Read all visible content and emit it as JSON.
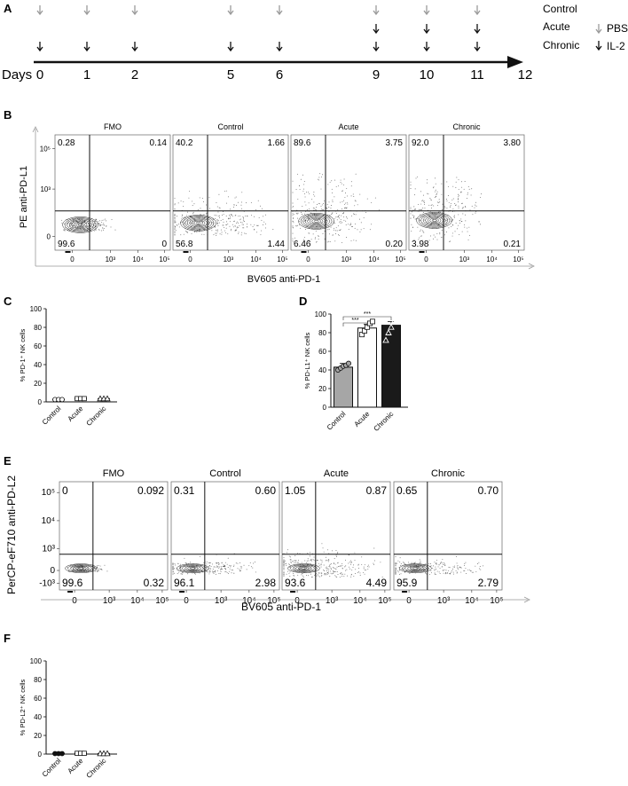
{
  "panel_letters": {
    "A": "A",
    "B": "B",
    "C": "C",
    "D": "D",
    "E": "E",
    "F": "F"
  },
  "timeline": {
    "axis_label": "Days",
    "days": [
      "0",
      "1",
      "2",
      "5",
      "6",
      "9",
      "10",
      "11",
      "12"
    ],
    "rows": [
      "Control",
      "Acute",
      "Chronic"
    ],
    "legend": [
      {
        "label": "PBS",
        "color": "#9a9a9a"
      },
      {
        "label": "IL-2",
        "color": "#111111"
      }
    ],
    "pbs_days": [
      0,
      1,
      2,
      5,
      6,
      9,
      10,
      11
    ],
    "il2_acute_days": [
      9,
      10,
      11
    ],
    "il2_chronic_days": [
      0,
      1,
      2,
      5,
      6,
      9,
      10,
      11
    ]
  },
  "flow_b": {
    "x_label": "BV605 anti-PD-1",
    "y_label": "PE anti-PD-L1",
    "y_ticks": [
      "10⁵",
      "10³",
      "0"
    ],
    "x_ticks": [
      "0",
      "10³",
      "10⁴",
      "10⁵"
    ],
    "plots": [
      {
        "title": "FMO",
        "q": [
          "0.28",
          "0.14",
          "99.6",
          "0"
        ]
      },
      {
        "title": "Control",
        "q": [
          "40.2",
          "1.66",
          "56.8",
          "1.44"
        ]
      },
      {
        "title": "Acute",
        "q": [
          "89.6",
          "3.75",
          "6.46",
          "0.20"
        ]
      },
      {
        "title": "Chronic",
        "q": [
          "92.0",
          "3.80",
          "3.98",
          "0.21"
        ]
      }
    ]
  },
  "flow_e": {
    "x_label": "BV605 anti-PD-1",
    "y_label": "PerCP-eF710 anti-PD-L2",
    "y_ticks": [
      "10⁵",
      "10⁴",
      "10³",
      "0",
      "-10³"
    ],
    "x_ticks": [
      "0",
      "10³",
      "10⁴",
      "10⁵"
    ],
    "plots": [
      {
        "title": "FMO",
        "q": [
          "0",
          "0.092",
          "99.6",
          "0.32"
        ]
      },
      {
        "title": "Control",
        "q": [
          "0.31",
          "0.60",
          "96.1",
          "2.98"
        ]
      },
      {
        "title": "Acute",
        "q": [
          "1.05",
          "0.87",
          "93.6",
          "4.49"
        ]
      },
      {
        "title": "Chronic",
        "q": [
          "0.65",
          "0.70",
          "95.9",
          "2.79"
        ]
      }
    ]
  },
  "chart_data": [
    {
      "panel": "C",
      "type": "scatter",
      "ylabel": "% PD-1⁺ NK cells",
      "categories": [
        "Control",
        "Acute",
        "Chronic"
      ],
      "values": [
        2.5,
        3.5,
        3.5
      ],
      "ylim": [
        0,
        100
      ],
      "yticks": [
        "0",
        "20",
        "40",
        "60",
        "80",
        "100"
      ],
      "markers": [
        "circle",
        "square",
        "triangle"
      ]
    },
    {
      "panel": "D",
      "type": "bar",
      "ylabel": "% PD-L1⁺ NK cells",
      "categories": [
        "Control",
        "Acute",
        "Chronic"
      ],
      "values": [
        43,
        85,
        88
      ],
      "ylim": [
        0,
        100
      ],
      "yticks": [
        "0",
        "20",
        "40",
        "60",
        "80",
        "100"
      ],
      "bar_colors": [
        "#a6a6a6",
        "#ffffff",
        "#1a1a1a"
      ],
      "points": [
        [
          40,
          42,
          44,
          45,
          47
        ],
        [
          78,
          82,
          86,
          90,
          92
        ],
        [
          72,
          80,
          86,
          92,
          94
        ]
      ],
      "significance": [
        {
          "from": 0,
          "to": 1,
          "label": "***"
        },
        {
          "from": 0,
          "to": 2,
          "label": "***"
        }
      ]
    },
    {
      "panel": "F",
      "type": "scatter",
      "ylabel": "% PD-L2⁺ NK cells",
      "categories": [
        "Control",
        "Acute",
        "Chronic"
      ],
      "values": [
        0.5,
        0.8,
        0.6
      ],
      "ylim": [
        0,
        100
      ],
      "yticks": [
        "0",
        "20",
        "40",
        "60",
        "80",
        "100"
      ],
      "markers": [
        "circle",
        "square",
        "triangle"
      ]
    }
  ]
}
